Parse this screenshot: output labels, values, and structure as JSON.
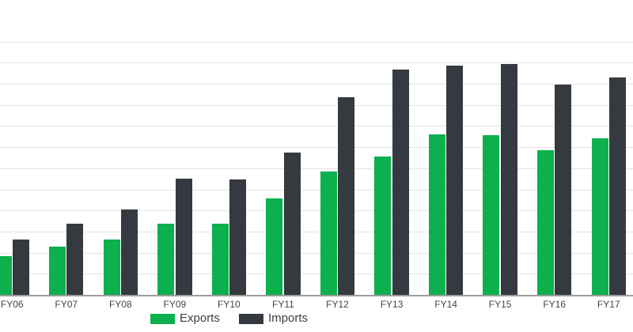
{
  "chart_data": {
    "type": "bar",
    "title": "",
    "xlabel": "",
    "ylabel": "",
    "categories": [
      "FY06",
      "FY07",
      "FY08",
      "FY09",
      "FY10",
      "FY11",
      "FY12",
      "FY13",
      "FY14",
      "FY15",
      "FY16",
      "FY17"
    ],
    "series": [
      {
        "name": "Exports",
        "color": "#0CB04C",
        "values": [
          455000,
          570000,
          655000,
          840000,
          845000,
          1145000,
          1465000,
          1635000,
          1905000,
          1895000,
          1715000,
          1850000
        ]
      },
      {
        "name": "Imports",
        "color": "#343A40",
        "values": [
          660000,
          840000,
          1010000,
          1375000,
          1365000,
          1685000,
          2345000,
          2670000,
          2715000,
          2735000,
          2490000,
          2580000
        ]
      }
    ],
    "ylim": [
      0,
      3000000
    ],
    "grid_step": 250000,
    "grid": true,
    "legend_position": "bottom",
    "y_tick_labels_visible": false,
    "colors": {
      "exports": "#0CB04C",
      "imports": "#343A40",
      "gridline": "#e3e3e3",
      "axis_line": "#9e9e9e",
      "tick_text": "#444444",
      "legend_text": "#3d3d3d",
      "background": "#ffffff"
    }
  }
}
